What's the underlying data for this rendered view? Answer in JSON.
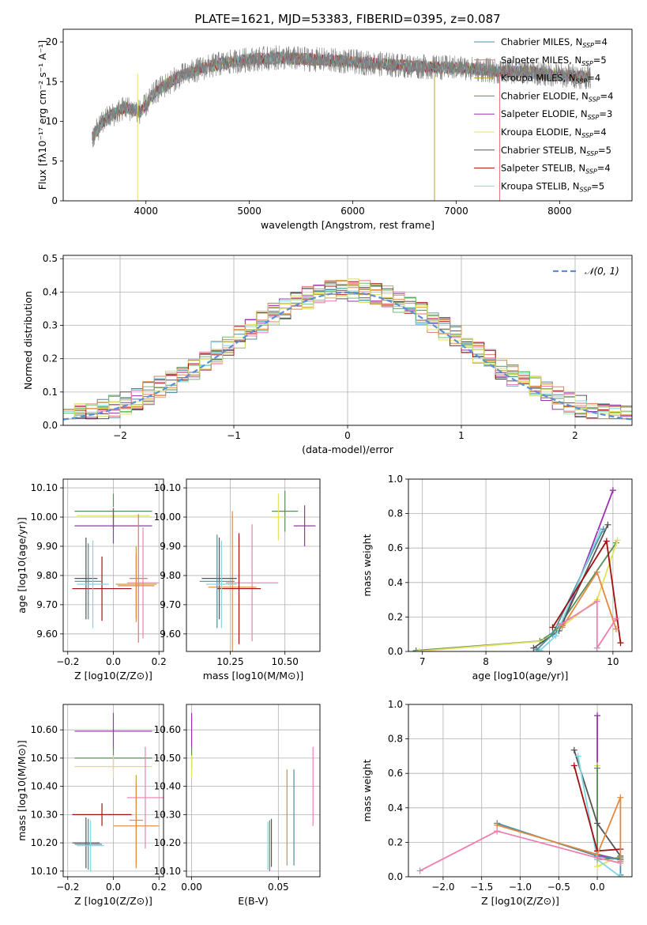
{
  "figure": {
    "title": "PLATE=1621, MJD=53383, FIBERID=0395, z=0.087"
  },
  "chart_data": [
    {
      "id": "spectrum",
      "type": "line",
      "xlabel": "wavelength [Angstrom, rest frame]",
      "ylabel": "Flux [fλ10⁻¹⁷ erg cm⁻² s⁻¹ A⁻¹]",
      "xlim": [
        3200,
        8700
      ],
      "ylim": [
        0,
        21.6
      ],
      "xticks": [
        4000,
        5000,
        6000,
        7000,
        8000
      ],
      "yticks": [
        0,
        5,
        10,
        15,
        20
      ],
      "grid": false,
      "legend_position": "upper right",
      "data_color": "#808080",
      "continuum": {
        "x": [
          3480,
          3600,
          3800,
          3950,
          4100,
          4300,
          4500,
          4700,
          5000,
          5300,
          5600,
          5900,
          6200,
          6500,
          6800,
          7100,
          7400,
          7700,
          8000,
          8300
        ],
        "y": [
          8,
          10.2,
          11.8,
          11.2,
          13.8,
          15.5,
          16.5,
          17.2,
          17.8,
          18.0,
          17.8,
          17.6,
          17.3,
          17.0,
          16.8,
          16.7,
          16.3,
          16.2,
          15.8,
          15.6
        ]
      },
      "series": [
        {
          "name": "Chabrier MILES, N_SSP=4",
          "color": "#4c8ea0"
        },
        {
          "name": "Salpeter MILES, N_SSP=5",
          "color": "#e37474"
        },
        {
          "name": "Kroupa MILES, N_SSP=4",
          "color": "#c0a040"
        },
        {
          "name": "Chabrier ELODIE, N_SSP=4",
          "color": "#5a8f5a"
        },
        {
          "name": "Salpeter ELODIE, N_SSP=3",
          "color": "#9b30b0"
        },
        {
          "name": "Kroupa ELODIE, N_SSP=4",
          "color": "#e6e060"
        },
        {
          "name": "Chabrier STELIB, N_SSP=5",
          "color": "#555555"
        },
        {
          "name": "Salpeter STELIB, N_SSP=4",
          "color": "#a01010"
        },
        {
          "name": "Kroupa STELIB, N_SSP=5",
          "color": "#7fd7e0"
        }
      ],
      "legend_labels": [
        {
          "pre": "Chabrier MILES, N",
          "sub": "SSP",
          "post": "=4"
        },
        {
          "pre": "Salpeter MILES, N",
          "sub": "SSP",
          "post": "=5"
        },
        {
          "pre": "Kroupa MILES, N",
          "sub": "SSP",
          "post": "=4"
        },
        {
          "pre": "Chabrier ELODIE, N",
          "sub": "SSP",
          "post": "=4"
        },
        {
          "pre": "Salpeter ELODIE, N",
          "sub": "SSP",
          "post": "=3"
        },
        {
          "pre": "Kroupa ELODIE, N",
          "sub": "SSP",
          "post": "=4"
        },
        {
          "pre": "Chabrier STELIB, N",
          "sub": "SSP",
          "post": "=5"
        },
        {
          "pre": "Salpeter STELIB, N",
          "sub": "SSP",
          "post": "=4"
        },
        {
          "pre": "Kroupa STELIB, N",
          "sub": "SSP",
          "post": "=5"
        }
      ]
    },
    {
      "id": "residuals",
      "type": "line",
      "xlabel": "(data-model)/error",
      "ylabel": "Normed distribution",
      "xlim": [
        -2.5,
        2.5
      ],
      "ylim": [
        0,
        0.51
      ],
      "xticks": [
        -2,
        -1,
        0,
        1,
        2
      ],
      "yticks": [
        0.0,
        0.1,
        0.2,
        0.3,
        0.4,
        0.5
      ],
      "grid": true,
      "legend_position": "upper right",
      "legend_label": "𝒩(0, 1)",
      "gaussian": {
        "mean": 0,
        "sigma": 1,
        "color": "#5b8fd6"
      },
      "bins": {
        "start": -2.5,
        "width": 0.1,
        "count": 50
      },
      "colors": [
        "#4c8ea0",
        "#e37474",
        "#c0a040",
        "#5a8f5a",
        "#9b30b0",
        "#e6e060",
        "#555555",
        "#a01010",
        "#7fd7e0",
        "#ee7fae",
        "#6fbf6f",
        "#e08a40",
        "#d0e070"
      ]
    },
    {
      "id": "age-vs-Z",
      "type": "scatter",
      "xlabel": "Z [log10(Z/Z⊙)]",
      "ylabel": "age  [log10(age/yr)]",
      "xlim": [
        -0.22,
        0.22
      ],
      "ylim": [
        9.54,
        10.13
      ],
      "xticks": [
        -0.2,
        0.0,
        0.2
      ],
      "yticks": [
        9.6,
        9.7,
        9.8,
        9.9,
        10.0,
        10.1
      ],
      "grid": true,
      "points": [
        {
          "x": 0.0,
          "y": 10.02,
          "xerr": 0.17,
          "yerr": 0.06,
          "color": "#5a8f5a"
        },
        {
          "x": 0.0,
          "y": 10.005,
          "xerr": 0.16,
          "yerr": 0.03,
          "color": "#e6e060"
        },
        {
          "x": 0.0,
          "y": 9.97,
          "xerr": 0.17,
          "yerr": 0.06,
          "color": "#9b30b0"
        },
        {
          "x": 0.11,
          "y": 9.79,
          "xerr": 0.04,
          "yerr": 0.22,
          "color": "#e37474"
        },
        {
          "x": 0.1,
          "y": 9.77,
          "xerr": 0.09,
          "yerr": 0.13,
          "color": "#c0a040"
        },
        {
          "x": 0.1,
          "y": 9.765,
          "xerr": 0.08,
          "yerr": 0.11,
          "color": "#e08a40"
        },
        {
          "x": 0.13,
          "y": 9.775,
          "xerr": 0.07,
          "yerr": 0.19,
          "color": "#ee7fae"
        },
        {
          "x": -0.05,
          "y": 9.755,
          "xerr": 0.13,
          "yerr": 0.11,
          "color": "#a01010"
        },
        {
          "x": -0.12,
          "y": 9.79,
          "xerr": 0.05,
          "yerr": 0.14,
          "color": "#555555"
        },
        {
          "x": -0.11,
          "y": 9.78,
          "xerr": 0.06,
          "yerr": 0.13,
          "color": "#4c8ea0"
        },
        {
          "x": -0.09,
          "y": 9.77,
          "xerr": 0.07,
          "yerr": 0.15,
          "color": "#7fd7e0"
        }
      ]
    },
    {
      "id": "age-vs-mass",
      "type": "scatter",
      "xlabel": "mass [log10(M/M⊙)]",
      "ylabel": "",
      "xlim": [
        10.05,
        10.66
      ],
      "ylim": [
        9.54,
        10.13
      ],
      "xticks": [
        10.25,
        10.5
      ],
      "yticks": [
        9.6,
        9.7,
        9.8,
        9.9,
        10.0,
        10.1
      ],
      "grid": true,
      "points": [
        {
          "x": 10.5,
          "y": 10.02,
          "xerr": 0.06,
          "yerr": 0.07,
          "color": "#5a8f5a"
        },
        {
          "x": 10.47,
          "y": 10.0,
          "xerr": 0.03,
          "yerr": 0.08,
          "color": "#e6e060"
        },
        {
          "x": 10.59,
          "y": 9.97,
          "xerr": 0.05,
          "yerr": 0.07,
          "color": "#9b30b0"
        },
        {
          "x": 10.26,
          "y": 9.76,
          "xerr": 0.11,
          "yerr": 0.26,
          "color": "#e08a40"
        },
        {
          "x": 10.35,
          "y": 9.775,
          "xerr": 0.12,
          "yerr": 0.2,
          "color": "#ee7fae"
        },
        {
          "x": 10.29,
          "y": 9.755,
          "xerr": 0.1,
          "yerr": 0.19,
          "color": "#a01010"
        },
        {
          "x": 10.2,
          "y": 9.79,
          "xerr": 0.08,
          "yerr": 0.14,
          "color": "#555555"
        },
        {
          "x": 10.19,
          "y": 9.78,
          "xerr": 0.08,
          "yerr": 0.16,
          "color": "#4c8ea0"
        },
        {
          "x": 10.21,
          "y": 9.77,
          "xerr": 0.07,
          "yerr": 0.15,
          "color": "#7fd7e0"
        }
      ]
    },
    {
      "id": "weight-vs-age",
      "type": "line",
      "xlabel": "age  [log10(age/yr)]",
      "ylabel": "mass weight",
      "xlim": [
        6.78,
        10.3
      ],
      "ylim": [
        0,
        1.0
      ],
      "xticks": [
        7,
        8,
        9,
        10
      ],
      "yticks": [
        0.0,
        0.2,
        0.4,
        0.6,
        0.8,
        1.0
      ],
      "grid": true,
      "series": [
        {
          "color": "#9b30b0",
          "x": [
            9.2,
            10.0
          ],
          "y": [
            0.15,
            0.935
          ]
        },
        {
          "color": "#5a8f5a",
          "x": [
            6.9,
            8.85,
            9.1,
            10.05
          ],
          "y": [
            0.005,
            0.06,
            0.12,
            0.63
          ]
        },
        {
          "color": "#e6e060",
          "x": [
            6.95,
            8.9,
            9.75,
            10.07
          ],
          "y": [
            0.002,
            0.06,
            0.3,
            0.645
          ]
        },
        {
          "color": "#555555",
          "x": [
            8.75,
            9.15,
            9.92
          ],
          "y": [
            0.02,
            0.12,
            0.735
          ]
        },
        {
          "color": "#4c8ea0",
          "x": [
            8.8,
            9.05,
            9.85
          ],
          "y": [
            0.01,
            0.1,
            0.71
          ]
        },
        {
          "color": "#7fd7e0",
          "x": [
            8.85,
            9.1,
            9.8
          ],
          "y": [
            0.005,
            0.09,
            0.7
          ]
        },
        {
          "color": "#a01010",
          "x": [
            9.05,
            9.9,
            10.12
          ],
          "y": [
            0.14,
            0.64,
            0.05
          ]
        },
        {
          "color": "#e08a40",
          "x": [
            9.2,
            9.75,
            10.05
          ],
          "y": [
            0.14,
            0.46,
            0.13
          ]
        },
        {
          "color": "#ee7fae",
          "x": [
            9.15,
            9.75,
            9.75,
            10.05
          ],
          "y": [
            0.15,
            0.29,
            0.02,
            0.19
          ]
        }
      ]
    },
    {
      "id": "mass-vs-Z",
      "type": "scatter",
      "xlabel": "Z [log10(Z/Z⊙)]",
      "ylabel": "mass [log10(M/M⊙)]",
      "xlim": [
        -0.22,
        0.22
      ],
      "ylim": [
        10.08,
        10.69
      ],
      "xticks": [
        -0.2,
        0.0,
        0.2
      ],
      "yticks": [
        10.1,
        10.2,
        10.3,
        10.4,
        10.5,
        10.6
      ],
      "grid": true,
      "points": [
        {
          "x": 0.0,
          "y": 10.595,
          "xerr": 0.17,
          "yerr": 0.065,
          "color": "#9b30b0"
        },
        {
          "x": 0.0,
          "y": 10.5,
          "xerr": 0.17,
          "yerr": 0.04,
          "color": "#5a8f5a"
        },
        {
          "x": 0.0,
          "y": 10.47,
          "xerr": 0.17,
          "yerr": 0.04,
          "color": "#e6e060"
        },
        {
          "x": 0.14,
          "y": 10.36,
          "xerr": 0.08,
          "yerr": 0.18,
          "color": "#ee7fae"
        },
        {
          "x": -0.05,
          "y": 10.3,
          "xerr": 0.13,
          "yerr": 0.04,
          "color": "#a01010"
        },
        {
          "x": 0.1,
          "y": 10.28,
          "xerr": 0.03,
          "yerr": 0.16,
          "color": "#c0a040"
        },
        {
          "x": 0.1,
          "y": 10.26,
          "xerr": 0.1,
          "yerr": 0.15,
          "color": "#e08a40"
        },
        {
          "x": -0.12,
          "y": 10.2,
          "xerr": 0.06,
          "yerr": 0.09,
          "color": "#555555"
        },
        {
          "x": -0.11,
          "y": 10.195,
          "xerr": 0.06,
          "yerr": 0.09,
          "color": "#4c8ea0"
        },
        {
          "x": -0.1,
          "y": 10.19,
          "xerr": 0.06,
          "yerr": 0.09,
          "color": "#7fd7e0"
        }
      ]
    },
    {
      "id": "mass-vs-ebv",
      "type": "scatter",
      "xlabel": "E(B-V)",
      "ylabel": "",
      "xlim": [
        -0.003,
        0.074
      ],
      "ylim": [
        10.08,
        10.69
      ],
      "xticks": [
        0.0,
        0.05
      ],
      "yticks": [
        10.1,
        10.2,
        10.3,
        10.4,
        10.5,
        10.6
      ],
      "grid": true,
      "points": [
        {
          "x": 0.0,
          "y": 10.595,
          "xerr": 0,
          "yerr": 0.065,
          "color": "#9b30b0"
        },
        {
          "x": 0.0,
          "y": 10.5,
          "xerr": 0,
          "yerr": 0.04,
          "color": "#5a8f5a"
        },
        {
          "x": 0.0,
          "y": 10.47,
          "xerr": 0,
          "yerr": 0.04,
          "color": "#e6e060"
        },
        {
          "x": 0.07,
          "y": 10.4,
          "xerr": 0,
          "yerr": 0.14,
          "color": "#ee7fae"
        },
        {
          "x": 0.059,
          "y": 10.29,
          "xerr": 0,
          "yerr": 0.17,
          "color": "#4c8ea0"
        },
        {
          "x": 0.055,
          "y": 10.29,
          "xerr": 0,
          "yerr": 0.17,
          "color": "#e08a40"
        },
        {
          "x": 0.046,
          "y": 10.2,
          "xerr": 0,
          "yerr": 0.085,
          "color": "#555555"
        },
        {
          "x": 0.045,
          "y": 10.19,
          "xerr": 0,
          "yerr": 0.09,
          "color": "#4c8ea0"
        },
        {
          "x": 0.044,
          "y": 10.19,
          "xerr": 0,
          "yerr": 0.085,
          "color": "#7fd7e0"
        }
      ]
    },
    {
      "id": "weight-vs-Z",
      "type": "line",
      "xlabel": "Z [log10(Z/Z⊙)]",
      "ylabel": "mass weight",
      "xlim": [
        -2.45,
        0.45
      ],
      "ylim": [
        0,
        1.0
      ],
      "xticks": [
        -2.0,
        -1.5,
        -1.0,
        -0.5,
        0.0
      ],
      "yticks": [
        0.0,
        0.2,
        0.4,
        0.6,
        0.8,
        1.0
      ],
      "grid": true,
      "series": [
        {
          "color": "#9b30b0",
          "x": [
            0.0,
            0.0,
            0.3
          ],
          "y": [
            0.935,
            0.13,
            0.1
          ]
        },
        {
          "color": "#e6e060",
          "x": [
            0.0,
            0.0,
            0.3
          ],
          "y": [
            0.645,
            0.06,
            0.12
          ]
        },
        {
          "color": "#5a8f5a",
          "x": [
            0.0,
            0.0,
            0.3
          ],
          "y": [
            0.63,
            0.1,
            0.11
          ]
        },
        {
          "color": "#555555",
          "x": [
            -0.3,
            0.0,
            0.3
          ],
          "y": [
            0.735,
            0.31,
            0.12
          ]
        },
        {
          "color": "#4c8ea0",
          "x": [
            -1.3,
            0.0,
            0.3,
            0.3
          ],
          "y": [
            0.31,
            0.12,
            0.1,
            0.01
          ]
        },
        {
          "color": "#7fd7e0",
          "x": [
            -0.25,
            0.0,
            0.3
          ],
          "y": [
            0.7,
            0.1,
            0.0
          ]
        },
        {
          "color": "#a01010",
          "x": [
            -0.3,
            0.0,
            0.3
          ],
          "y": [
            0.645,
            0.15,
            0.16
          ]
        },
        {
          "color": "#e08a40",
          "x": [
            -1.3,
            0.0,
            0.3,
            0.3
          ],
          "y": [
            0.3,
            0.13,
            0.46,
            0.09
          ]
        },
        {
          "color": "#ee7fae",
          "x": [
            -2.3,
            -1.3,
            0.0,
            0.3
          ],
          "y": [
            0.035,
            0.265,
            0.11,
            0.08
          ]
        }
      ]
    }
  ]
}
